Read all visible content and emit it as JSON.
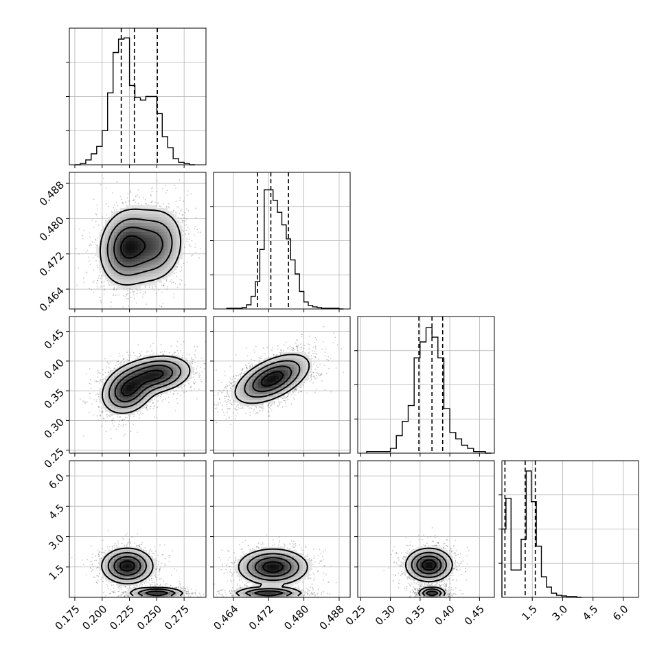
{
  "chart_data": {
    "type": "corner",
    "grid": true,
    "params": [
      {
        "range": [
          0.17,
          0.295
        ],
        "ticks": [
          0.175,
          0.2,
          0.225,
          0.25,
          0.275
        ],
        "tick_labels": [
          "0.175",
          "0.200",
          "0.225",
          "0.250",
          "0.275"
        ],
        "quantiles": [
          0.2175,
          0.2295,
          0.2505
        ],
        "hist": {
          "edges": [
            0.175,
            0.18,
            0.185,
            0.19,
            0.195,
            0.2,
            0.205,
            0.21,
            0.215,
            0.22,
            0.225,
            0.23,
            0.235,
            0.24,
            0.245,
            0.25,
            0.255,
            0.26,
            0.265,
            0.27,
            0.275,
            0.28,
            0.285
          ],
          "counts": [
            0,
            1,
            4,
            9,
            15,
            28,
            59,
            92,
            103,
            104,
            65,
            55,
            53,
            56,
            56,
            42,
            23,
            14,
            5,
            2,
            1,
            0
          ],
          "ymax": 112
        }
      },
      {
        "range": [
          0.4595,
          0.4905
        ],
        "ticks": [
          0.464,
          0.472,
          0.48,
          0.488
        ],
        "tick_labels": [
          "0.464",
          "0.472",
          "0.480",
          "0.488"
        ],
        "quantiles": [
          0.4695,
          0.4725,
          0.4765
        ],
        "hist": {
          "edges": [
            0.4625,
            0.464,
            0.465,
            0.466,
            0.467,
            0.468,
            0.469,
            0.47,
            0.471,
            0.472,
            0.473,
            0.474,
            0.475,
            0.476,
            0.477,
            0.478,
            0.479,
            0.48,
            0.481,
            0.482,
            0.483,
            0.484,
            0.485,
            0.486,
            0.487,
            0.488,
            0.489
          ],
          "counts": [
            1,
            1,
            1,
            2,
            6,
            18,
            39,
            85,
            170,
            170,
            155,
            138,
            120,
            100,
            70,
            50,
            25,
            10,
            5,
            3,
            2,
            1,
            1,
            1,
            1,
            0
          ],
          "ymax": 195
        }
      },
      {
        "range": [
          0.245,
          0.475
        ],
        "ticks": [
          0.25,
          0.3,
          0.35,
          0.4,
          0.45
        ],
        "tick_labels": [
          "0.25",
          "0.30",
          "0.35",
          "0.40",
          "0.45"
        ],
        "quantiles": [
          0.348,
          0.37,
          0.388
        ],
        "hist": {
          "edges": [
            0.26,
            0.27,
            0.28,
            0.29,
            0.3,
            0.31,
            0.32,
            0.33,
            0.34,
            0.35,
            0.36,
            0.37,
            0.38,
            0.39,
            0.4,
            0.41,
            0.42,
            0.43,
            0.44,
            0.45,
            0.46,
            0.47
          ],
          "counts": [
            1,
            1,
            1,
            1,
            3,
            11,
            20,
            30,
            60,
            70,
            79,
            73,
            60,
            28,
            13,
            9,
            5,
            3,
            1,
            1,
            0
          ],
          "ymax": 86
        }
      },
      {
        "range": [
          0.0,
          6.75
        ],
        "ticks": [
          1.5,
          3.0,
          4.5,
          6.0
        ],
        "tick_labels": [
          "1.5",
          "3.0",
          "4.5",
          "6.0"
        ],
        "quantiles": [
          0.15,
          1.15,
          1.65
        ],
        "hist": {
          "edges": [
            0.0,
            0.2,
            0.45,
            0.7,
            0.95,
            1.2,
            1.45,
            1.7,
            1.95,
            2.2,
            2.45,
            2.7,
            2.95,
            3.2,
            3.45,
            3.7,
            3.95
          ],
          "counts": [
            100,
            145,
            40,
            40,
            85,
            185,
            140,
            75,
            30,
            15,
            6,
            3,
            2,
            1,
            1,
            0
          ],
          "ymax": 200
        }
      }
    ],
    "pairs": [
      {
        "row": 1,
        "col": 0,
        "rho": 0.1,
        "blobs": [
          {
            "mx": 0.223,
            "my": 0.4735,
            "sx": 0.013,
            "sy": 0.0044,
            "w": 0.6
          },
          {
            "mx": 0.25,
            "my": 0.474,
            "sx": 0.013,
            "sy": 0.0044,
            "w": 0.4
          }
        ]
      },
      {
        "row": 2,
        "col": 0,
        "rho": 0.2,
        "blobs": [
          {
            "mx": 0.223,
            "my": 0.35,
            "sx": 0.012,
            "sy": 0.02,
            "w": 0.5
          },
          {
            "mx": 0.25,
            "my": 0.378,
            "sx": 0.016,
            "sy": 0.016,
            "w": 0.5
          }
        ]
      },
      {
        "row": 2,
        "col": 1,
        "rho": 0.55,
        "blobs": [
          {
            "mx": 0.4728,
            "my": 0.37,
            "sx": 0.0043,
            "sy": 0.021,
            "w": 1.0
          }
        ]
      },
      {
        "row": 3,
        "col": 0,
        "rho": 0.0,
        "blobs": [
          {
            "mx": 0.223,
            "my": 1.55,
            "sx": 0.012,
            "sy": 0.45,
            "w": 0.55
          },
          {
            "mx": 0.25,
            "my": 0.2,
            "sx": 0.013,
            "sy": 0.15,
            "w": 0.45
          }
        ]
      },
      {
        "row": 3,
        "col": 1,
        "rho": 0.0,
        "blobs": [
          {
            "mx": 0.473,
            "my": 1.5,
            "sx": 0.004,
            "sy": 0.45,
            "w": 0.55
          },
          {
            "mx": 0.472,
            "my": 0.2,
            "sx": 0.004,
            "sy": 0.15,
            "w": 0.45
          }
        ]
      },
      {
        "row": 3,
        "col": 2,
        "rho": 0.0,
        "blobs": [
          {
            "mx": 0.365,
            "my": 1.6,
            "sx": 0.02,
            "sy": 0.42,
            "w": 0.55
          },
          {
            "mx": 0.37,
            "my": 0.2,
            "sx": 0.012,
            "sy": 0.15,
            "w": 0.45
          }
        ]
      }
    ]
  }
}
